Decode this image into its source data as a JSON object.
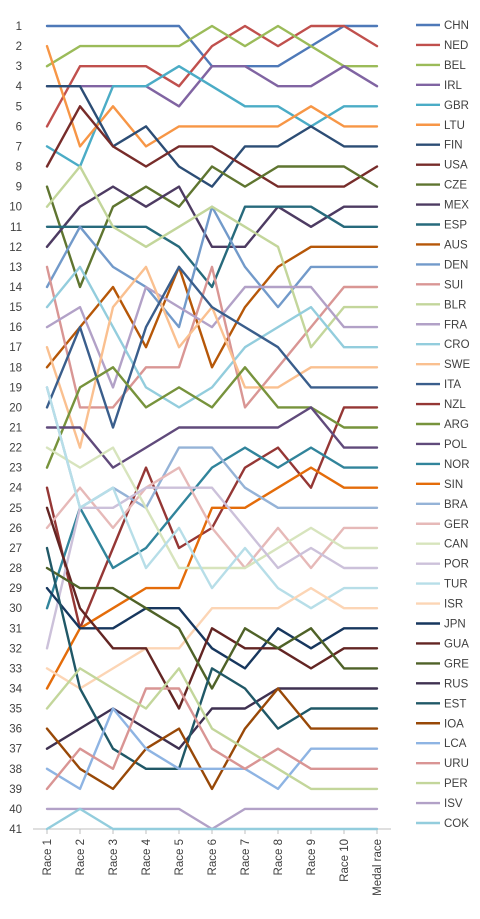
{
  "chart_data": {
    "type": "line",
    "title": "",
    "xlabel": "",
    "ylabel": "",
    "y_inverted": true,
    "ylim": [
      1,
      41
    ],
    "yticks": [
      1,
      2,
      3,
      4,
      5,
      6,
      7,
      8,
      9,
      10,
      11,
      12,
      13,
      14,
      15,
      16,
      17,
      18,
      19,
      20,
      21,
      22,
      23,
      24,
      25,
      26,
      27,
      28,
      29,
      30,
      31,
      32,
      33,
      34,
      35,
      36,
      37,
      38,
      39,
      40,
      41
    ],
    "categories": [
      "Race 1",
      "Race 2",
      "Race 3",
      "Race 4",
      "Race 5",
      "Race 6",
      "Race 7",
      "Race 8",
      "Race 9",
      "Race 10",
      "Medal race"
    ],
    "grid": false,
    "legend_position": "right",
    "series": [
      {
        "name": "CHN",
        "color": "#4E79B8",
        "values": [
          1,
          1,
          1,
          1,
          1,
          3,
          3,
          3,
          2,
          1,
          1
        ]
      },
      {
        "name": "NED",
        "color": "#C0504D",
        "values": [
          6,
          3,
          3,
          3,
          4,
          2,
          1,
          2,
          1,
          1,
          2
        ]
      },
      {
        "name": "BEL",
        "color": "#9BBB59",
        "values": [
          3,
          2,
          2,
          2,
          2,
          1,
          2,
          1,
          2,
          3,
          3
        ]
      },
      {
        "name": "IRL",
        "color": "#8064A2",
        "values": [
          4,
          4,
          4,
          4,
          5,
          3,
          3,
          4,
          4,
          3,
          4
        ]
      },
      {
        "name": "GBR",
        "color": "#4BACC6",
        "values": [
          7,
          8,
          4,
          4,
          3,
          4,
          5,
          5,
          6,
          5,
          5
        ]
      },
      {
        "name": "LTU",
        "color": "#F79646",
        "values": [
          2,
          7,
          5,
          7,
          6,
          6,
          6,
          6,
          5,
          6,
          6
        ]
      },
      {
        "name": "FIN",
        "color": "#2C4D75",
        "values": [
          4,
          4,
          7,
          6,
          8,
          9,
          7,
          7,
          6,
          7,
          7
        ]
      },
      {
        "name": "USA",
        "color": "#772C2A",
        "values": [
          8,
          5,
          7,
          8,
          7,
          7,
          8,
          9,
          9,
          9,
          8
        ]
      },
      {
        "name": "CZE",
        "color": "#5F7530",
        "values": [
          9,
          14,
          10,
          9,
          10,
          8,
          9,
          8,
          8,
          8,
          9
        ]
      },
      {
        "name": "MEX",
        "color": "#4D3B62",
        "values": [
          12,
          10,
          9,
          10,
          9,
          12,
          12,
          10,
          11,
          10,
          10
        ]
      },
      {
        "name": "ESP",
        "color": "#276A7C",
        "values": [
          11,
          11,
          11,
          11,
          12,
          14,
          10,
          10,
          10,
          11,
          11
        ]
      },
      {
        "name": "AUS",
        "color": "#B65708",
        "values": [
          18,
          16,
          14,
          17,
          13,
          18,
          15,
          13,
          12,
          12,
          12
        ]
      },
      {
        "name": "DEN",
        "color": "#729ACA",
        "values": [
          14,
          11,
          13,
          14,
          16,
          10,
          13,
          15,
          13,
          13,
          13
        ]
      },
      {
        "name": "SUI",
        "color": "#D99694",
        "values": [
          13,
          20,
          20,
          18,
          18,
          13,
          20,
          18,
          16,
          14,
          14
        ]
      },
      {
        "name": "BLR",
        "color": "#C3D69B",
        "values": [
          10,
          8,
          11,
          12,
          11,
          10,
          11,
          12,
          17,
          15,
          15
        ]
      },
      {
        "name": "FRA",
        "color": "#B2A1C7",
        "values": [
          16,
          15,
          19,
          14,
          15,
          16,
          14,
          14,
          14,
          16,
          16
        ]
      },
      {
        "name": "CRO",
        "color": "#93CDDD",
        "values": [
          15,
          13,
          16,
          19,
          20,
          19,
          17,
          16,
          15,
          17,
          17
        ]
      },
      {
        "name": "SWE",
        "color": "#FAC090",
        "values": [
          17,
          22,
          15,
          13,
          17,
          15,
          19,
          19,
          18,
          18,
          18
        ]
      },
      {
        "name": "ITA",
        "color": "#3A5E8C",
        "values": [
          20,
          16,
          21,
          16,
          13,
          15,
          16,
          17,
          19,
          19,
          19
        ]
      },
      {
        "name": "NZL",
        "color": "#953735",
        "values": [
          24,
          31,
          27,
          23,
          27,
          26,
          23,
          22,
          24,
          20,
          20
        ]
      },
      {
        "name": "ARG",
        "color": "#77933C",
        "values": [
          23,
          19,
          18,
          20,
          19,
          20,
          18,
          20,
          20,
          21,
          21
        ]
      },
      {
        "name": "POL",
        "color": "#604A7B",
        "values": [
          21,
          21,
          23,
          22,
          21,
          21,
          21,
          21,
          20,
          22,
          22
        ]
      },
      {
        "name": "NOR",
        "color": "#31849B",
        "values": [
          30,
          25,
          28,
          27,
          25,
          23,
          22,
          23,
          22,
          23,
          23
        ]
      },
      {
        "name": "SIN",
        "color": "#E46C0A",
        "values": [
          34,
          31,
          30,
          29,
          29,
          25,
          25,
          24,
          23,
          24,
          24
        ]
      },
      {
        "name": "BRA",
        "color": "#95B3D7",
        "values": [
          19,
          25,
          24,
          25,
          22,
          22,
          24,
          25,
          25,
          25,
          25
        ]
      },
      {
        "name": "GER",
        "color": "#E6B9B8",
        "values": [
          26,
          24,
          26,
          24,
          23,
          26,
          28,
          26,
          28,
          26,
          26
        ]
      },
      {
        "name": "CAN",
        "color": "#D7E4BD",
        "values": [
          22,
          23,
          22,
          25,
          28,
          28,
          28,
          27,
          26,
          27,
          27
        ]
      },
      {
        "name": "POR",
        "color": "#CCC1DA",
        "values": [
          32,
          25,
          25,
          24,
          24,
          24,
          26,
          28,
          27,
          28,
          28
        ]
      },
      {
        "name": "TUR",
        "color": "#B7DEE8",
        "values": [
          19,
          25,
          24,
          28,
          26,
          29,
          27,
          29,
          30,
          29,
          29
        ]
      },
      {
        "name": "ISR",
        "color": "#FCD5B5",
        "values": [
          33,
          34,
          33,
          32,
          32,
          30,
          30,
          30,
          29,
          30,
          30
        ]
      },
      {
        "name": "JPN",
        "color": "#17375E",
        "values": [
          29,
          31,
          31,
          30,
          30,
          32,
          33,
          31,
          32,
          31,
          31
        ]
      },
      {
        "name": "GUA",
        "color": "#632523",
        "values": [
          25,
          30,
          32,
          32,
          35,
          31,
          32,
          32,
          33,
          32,
          32
        ]
      },
      {
        "name": "GRE",
        "color": "#4F6228",
        "values": [
          28,
          29,
          29,
          30,
          31,
          34,
          31,
          32,
          31,
          33,
          33
        ]
      },
      {
        "name": "RUS",
        "color": "#3F3151",
        "values": [
          37,
          36,
          35,
          36,
          37,
          35,
          35,
          34,
          34,
          34,
          34
        ]
      },
      {
        "name": "EST",
        "color": "#205867",
        "values": [
          27,
          34,
          37,
          38,
          38,
          33,
          34,
          36,
          35,
          35,
          35
        ]
      },
      {
        "name": "IOA",
        "color": "#984807",
        "values": [
          36,
          38,
          39,
          37,
          36,
          39,
          36,
          34,
          36,
          36,
          36
        ]
      },
      {
        "name": "LCA",
        "color": "#8EB4E3",
        "values": [
          38,
          39,
          35,
          37,
          38,
          38,
          38,
          39,
          37,
          37,
          37
        ]
      },
      {
        "name": "URU",
        "color": "#D99594",
        "values": [
          39,
          37,
          38,
          34,
          34,
          37,
          38,
          37,
          38,
          38,
          38
        ]
      },
      {
        "name": "PER",
        "color": "#C3D69B",
        "values": [
          35,
          33,
          34,
          35,
          33,
          36,
          37,
          38,
          39,
          39,
          39
        ]
      },
      {
        "name": "ISV",
        "color": "#B2A1C7",
        "values": [
          40,
          40,
          40,
          40,
          40,
          41,
          40,
          40,
          40,
          40,
          40
        ]
      },
      {
        "name": "COK",
        "color": "#93CDDD",
        "values": [
          41,
          40,
          41,
          41,
          41,
          41,
          41,
          41,
          41,
          41,
          41
        ]
      }
    ]
  }
}
